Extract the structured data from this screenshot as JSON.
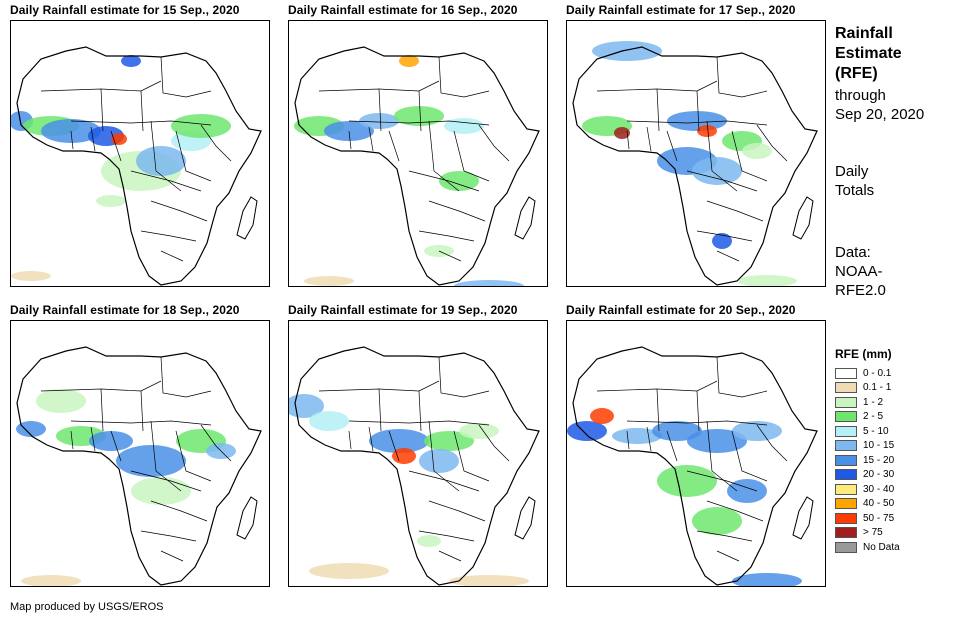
{
  "panels": [
    {
      "title": "Daily Rainfall estimate for 15 Sep., 2020"
    },
    {
      "title": "Daily Rainfall estimate for 16 Sep., 2020"
    },
    {
      "title": "Daily Rainfall estimate for 17 Sep., 2020"
    },
    {
      "title": "Daily Rainfall estimate for 18 Sep., 2020"
    },
    {
      "title": "Daily Rainfall estimate for 19 Sep., 2020"
    },
    {
      "title": "Daily Rainfall estimate for 20 Sep., 2020"
    }
  ],
  "side": {
    "title_line1": "Rainfall",
    "title_line2": "Estimate",
    "title_line3": "(RFE)",
    "through_line1": "through",
    "through_line2": "Sep 20, 2020",
    "totals_line1": "Daily",
    "totals_line2": "Totals",
    "data_line1": "Data:",
    "data_line2": "NOAA-",
    "data_line3": "RFE2.0"
  },
  "legend": {
    "title": "RFE (mm)",
    "items": [
      {
        "label": "0 - 0.1",
        "color": "#ffffff"
      },
      {
        "label": "0.1 - 1",
        "color": "#f0dcb4"
      },
      {
        "label": "1 - 2",
        "color": "#c8f5c0"
      },
      {
        "label": "2 - 5",
        "color": "#6ee66e"
      },
      {
        "label": "5 - 10",
        "color": "#b4f0f5"
      },
      {
        "label": "10 - 15",
        "color": "#7db9ee"
      },
      {
        "label": "15 - 20",
        "color": "#4a8fe6"
      },
      {
        "label": "20 - 30",
        "color": "#1e5ae6"
      },
      {
        "label": "30 - 40",
        "color": "#ffeb7d"
      },
      {
        "label": "40 - 50",
        "color": "#ffa500"
      },
      {
        "label": "50 - 75",
        "color": "#ff3c00"
      },
      {
        "label": "> 75",
        "color": "#a01e1e"
      },
      {
        "label": "No Data",
        "color": "#999999"
      }
    ]
  },
  "footer": "Map produced by USGS/EROS"
}
